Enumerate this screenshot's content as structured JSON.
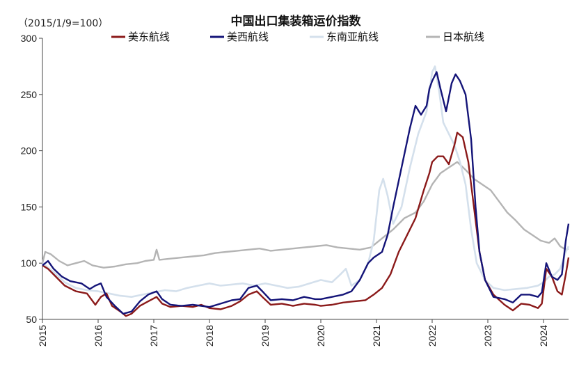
{
  "chart_data": {
    "type": "line",
    "title": "中国出口集装箱运价指数",
    "ylabel": "（2015/1/9=100）",
    "xlabel": "",
    "ylim": [
      50,
      300
    ],
    "xlim": [
      2015,
      2024.45
    ],
    "grid": false,
    "legend_position": "top",
    "yticks": [
      "50",
      "100",
      "150",
      "200",
      "250",
      "300"
    ],
    "xticks": [
      {
        "x": 2015,
        "label": "2015"
      },
      {
        "x": 2016,
        "label": "2016"
      },
      {
        "x": 2017,
        "label": "2017"
      },
      {
        "x": 2018,
        "label": "2018"
      },
      {
        "x": 2019,
        "label": "2019"
      },
      {
        "x": 2020,
        "label": "2020"
      },
      {
        "x": 2021,
        "label": "2021"
      },
      {
        "x": 2022,
        "label": "2022"
      },
      {
        "x": 2023,
        "label": "2023"
      },
      {
        "x": 2024,
        "label": "2024"
      }
    ],
    "series": [
      {
        "name": "美东航线",
        "color": "#8B1A1A",
        "points": [
          [
            2015.0,
            98
          ],
          [
            2015.1,
            95
          ],
          [
            2015.2,
            90
          ],
          [
            2015.4,
            80
          ],
          [
            2015.6,
            75
          ],
          [
            2015.8,
            73
          ],
          [
            2015.95,
            63
          ],
          [
            2016.05,
            70
          ],
          [
            2016.15,
            73
          ],
          [
            2016.25,
            62
          ],
          [
            2016.4,
            57
          ],
          [
            2016.5,
            53
          ],
          [
            2016.6,
            55
          ],
          [
            2016.75,
            62
          ],
          [
            2016.9,
            66
          ],
          [
            2017.05,
            70
          ],
          [
            2017.15,
            64
          ],
          [
            2017.3,
            61
          ],
          [
            2017.5,
            62
          ],
          [
            2017.7,
            61
          ],
          [
            2017.85,
            63
          ],
          [
            2018.0,
            60
          ],
          [
            2018.2,
            59
          ],
          [
            2018.4,
            62
          ],
          [
            2018.55,
            66
          ],
          [
            2018.7,
            72
          ],
          [
            2018.85,
            75
          ],
          [
            2018.95,
            70
          ],
          [
            2019.1,
            63
          ],
          [
            2019.3,
            64
          ],
          [
            2019.5,
            62
          ],
          [
            2019.7,
            64
          ],
          [
            2019.9,
            63
          ],
          [
            2020.0,
            62
          ],
          [
            2020.2,
            63
          ],
          [
            2020.4,
            65
          ],
          [
            2020.6,
            66
          ],
          [
            2020.8,
            67
          ],
          [
            2020.95,
            72
          ],
          [
            2021.1,
            78
          ],
          [
            2021.25,
            90
          ],
          [
            2021.4,
            110
          ],
          [
            2021.55,
            125
          ],
          [
            2021.7,
            140
          ],
          [
            2021.85,
            165
          ],
          [
            2021.95,
            180
          ],
          [
            2022.0,
            190
          ],
          [
            2022.1,
            195
          ],
          [
            2022.2,
            195
          ],
          [
            2022.3,
            188
          ],
          [
            2022.4,
            205
          ],
          [
            2022.45,
            216
          ],
          [
            2022.55,
            212
          ],
          [
            2022.65,
            190
          ],
          [
            2022.75,
            150
          ],
          [
            2022.85,
            110
          ],
          [
            2022.95,
            85
          ],
          [
            2023.1,
            72
          ],
          [
            2023.3,
            63
          ],
          [
            2023.45,
            58
          ],
          [
            2023.6,
            64
          ],
          [
            2023.75,
            63
          ],
          [
            2023.9,
            60
          ],
          [
            2023.97,
            64
          ],
          [
            2024.05,
            95
          ],
          [
            2024.15,
            88
          ],
          [
            2024.25,
            75
          ],
          [
            2024.33,
            72
          ],
          [
            2024.4,
            90
          ],
          [
            2024.45,
            105
          ]
        ]
      },
      {
        "name": "美西航线",
        "color": "#141478",
        "points": [
          [
            2015.0,
            98
          ],
          [
            2015.1,
            102
          ],
          [
            2015.2,
            95
          ],
          [
            2015.35,
            88
          ],
          [
            2015.5,
            84
          ],
          [
            2015.7,
            82
          ],
          [
            2015.85,
            77
          ],
          [
            2015.95,
            80
          ],
          [
            2016.05,
            82
          ],
          [
            2016.15,
            70
          ],
          [
            2016.3,
            62
          ],
          [
            2016.45,
            55
          ],
          [
            2016.6,
            57
          ],
          [
            2016.75,
            66
          ],
          [
            2016.9,
            72
          ],
          [
            2017.05,
            75
          ],
          [
            2017.15,
            68
          ],
          [
            2017.3,
            63
          ],
          [
            2017.5,
            62
          ],
          [
            2017.7,
            63
          ],
          [
            2017.85,
            62
          ],
          [
            2018.0,
            61
          ],
          [
            2018.2,
            64
          ],
          [
            2018.4,
            67
          ],
          [
            2018.55,
            68
          ],
          [
            2018.7,
            78
          ],
          [
            2018.85,
            80
          ],
          [
            2018.95,
            75
          ],
          [
            2019.1,
            67
          ],
          [
            2019.3,
            68
          ],
          [
            2019.5,
            67
          ],
          [
            2019.7,
            70
          ],
          [
            2019.9,
            68
          ],
          [
            2020.0,
            68
          ],
          [
            2020.2,
            70
          ],
          [
            2020.4,
            72
          ],
          [
            2020.55,
            75
          ],
          [
            2020.7,
            85
          ],
          [
            2020.85,
            100
          ],
          [
            2020.95,
            105
          ],
          [
            2021.1,
            110
          ],
          [
            2021.2,
            125
          ],
          [
            2021.3,
            150
          ],
          [
            2021.45,
            185
          ],
          [
            2021.6,
            220
          ],
          [
            2021.7,
            240
          ],
          [
            2021.8,
            232
          ],
          [
            2021.9,
            240
          ],
          [
            2021.95,
            255
          ],
          [
            2022.0,
            262
          ],
          [
            2022.08,
            270
          ],
          [
            2022.15,
            255
          ],
          [
            2022.25,
            235
          ],
          [
            2022.35,
            260
          ],
          [
            2022.42,
            268
          ],
          [
            2022.5,
            262
          ],
          [
            2022.6,
            250
          ],
          [
            2022.7,
            210
          ],
          [
            2022.78,
            150
          ],
          [
            2022.85,
            110
          ],
          [
            2022.95,
            85
          ],
          [
            2023.1,
            70
          ],
          [
            2023.3,
            68
          ],
          [
            2023.45,
            65
          ],
          [
            2023.6,
            72
          ],
          [
            2023.75,
            72
          ],
          [
            2023.9,
            70
          ],
          [
            2023.97,
            74
          ],
          [
            2024.05,
            100
          ],
          [
            2024.15,
            88
          ],
          [
            2024.25,
            85
          ],
          [
            2024.33,
            90
          ],
          [
            2024.4,
            120
          ],
          [
            2024.45,
            135
          ]
        ]
      },
      {
        "name": "东南亚航线",
        "color": "#D4E0EC",
        "points": [
          [
            2015.0,
            100
          ],
          [
            2015.2,
            92
          ],
          [
            2015.4,
            83
          ],
          [
            2015.6,
            78
          ],
          [
            2015.8,
            76
          ],
          [
            2016.0,
            75
          ],
          [
            2016.2,
            73
          ],
          [
            2016.4,
            71
          ],
          [
            2016.6,
            70
          ],
          [
            2016.8,
            72
          ],
          [
            2017.0,
            74
          ],
          [
            2017.2,
            76
          ],
          [
            2017.4,
            75
          ],
          [
            2017.6,
            78
          ],
          [
            2017.8,
            80
          ],
          [
            2018.0,
            82
          ],
          [
            2018.2,
            80
          ],
          [
            2018.4,
            81
          ],
          [
            2018.6,
            82
          ],
          [
            2018.8,
            80
          ],
          [
            2019.0,
            82
          ],
          [
            2019.2,
            80
          ],
          [
            2019.4,
            78
          ],
          [
            2019.6,
            79
          ],
          [
            2019.8,
            82
          ],
          [
            2020.0,
            85
          ],
          [
            2020.2,
            83
          ],
          [
            2020.35,
            90
          ],
          [
            2020.45,
            95
          ],
          [
            2020.55,
            80
          ],
          [
            2020.7,
            85
          ],
          [
            2020.85,
            100
          ],
          [
            2020.95,
            120
          ],
          [
            2021.05,
            165
          ],
          [
            2021.12,
            175
          ],
          [
            2021.2,
            160
          ],
          [
            2021.3,
            135
          ],
          [
            2021.45,
            150
          ],
          [
            2021.6,
            185
          ],
          [
            2021.75,
            215
          ],
          [
            2021.9,
            235
          ],
          [
            2022.0,
            270
          ],
          [
            2022.05,
            275
          ],
          [
            2022.12,
            255
          ],
          [
            2022.2,
            225
          ],
          [
            2022.3,
            215
          ],
          [
            2022.4,
            205
          ],
          [
            2022.5,
            190
          ],
          [
            2022.6,
            170
          ],
          [
            2022.7,
            130
          ],
          [
            2022.8,
            100
          ],
          [
            2022.95,
            85
          ],
          [
            2023.1,
            78
          ],
          [
            2023.3,
            76
          ],
          [
            2023.5,
            77
          ],
          [
            2023.7,
            78
          ],
          [
            2023.9,
            80
          ],
          [
            2024.0,
            83
          ],
          [
            2024.1,
            88
          ],
          [
            2024.2,
            90
          ],
          [
            2024.3,
            95
          ],
          [
            2024.4,
            110
          ],
          [
            2024.45,
            115
          ]
        ]
      },
      {
        "name": "日本航线",
        "color": "#B4B4B4",
        "points": [
          [
            2015.0,
            100
          ],
          [
            2015.05,
            110
          ],
          [
            2015.15,
            108
          ],
          [
            2015.3,
            102
          ],
          [
            2015.45,
            98
          ],
          [
            2015.6,
            100
          ],
          [
            2015.75,
            102
          ],
          [
            2015.9,
            98
          ],
          [
            2016.1,
            96
          ],
          [
            2016.3,
            97
          ],
          [
            2016.5,
            99
          ],
          [
            2016.7,
            100
          ],
          [
            2016.85,
            102
          ],
          [
            2017.0,
            103
          ],
          [
            2017.05,
            112
          ],
          [
            2017.1,
            103
          ],
          [
            2017.3,
            104
          ],
          [
            2017.5,
            105
          ],
          [
            2017.7,
            106
          ],
          [
            2017.9,
            107
          ],
          [
            2018.1,
            109
          ],
          [
            2018.3,
            110
          ],
          [
            2018.5,
            111
          ],
          [
            2018.7,
            112
          ],
          [
            2018.9,
            113
          ],
          [
            2019.1,
            111
          ],
          [
            2019.3,
            112
          ],
          [
            2019.5,
            113
          ],
          [
            2019.7,
            114
          ],
          [
            2019.9,
            115
          ],
          [
            2020.1,
            116
          ],
          [
            2020.3,
            114
          ],
          [
            2020.5,
            113
          ],
          [
            2020.7,
            112
          ],
          [
            2020.9,
            114
          ],
          [
            2021.0,
            118
          ],
          [
            2021.1,
            122
          ],
          [
            2021.3,
            130
          ],
          [
            2021.5,
            140
          ],
          [
            2021.7,
            145
          ],
          [
            2021.85,
            155
          ],
          [
            2022.0,
            170
          ],
          [
            2022.15,
            180
          ],
          [
            2022.3,
            185
          ],
          [
            2022.45,
            190
          ],
          [
            2022.6,
            183
          ],
          [
            2022.75,
            175
          ],
          [
            2022.9,
            170
          ],
          [
            2023.05,
            165
          ],
          [
            2023.2,
            155
          ],
          [
            2023.35,
            145
          ],
          [
            2023.5,
            138
          ],
          [
            2023.65,
            130
          ],
          [
            2023.8,
            125
          ],
          [
            2023.95,
            120
          ],
          [
            2024.1,
            118
          ],
          [
            2024.2,
            122
          ],
          [
            2024.3,
            115
          ],
          [
            2024.4,
            112
          ],
          [
            2024.45,
            113
          ]
        ]
      }
    ]
  }
}
